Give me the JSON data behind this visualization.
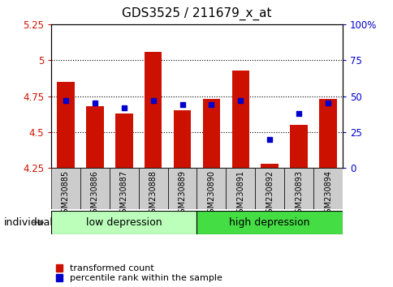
{
  "title": "GDS3525 / 211679_x_at",
  "samples": [
    "GSM230885",
    "GSM230886",
    "GSM230887",
    "GSM230888",
    "GSM230889",
    "GSM230890",
    "GSM230891",
    "GSM230892",
    "GSM230893",
    "GSM230894"
  ],
  "bar_values": [
    4.85,
    4.68,
    4.63,
    5.06,
    4.65,
    4.73,
    4.93,
    4.28,
    4.55,
    4.73
  ],
  "pct_values": [
    47,
    45,
    42,
    47,
    44,
    44,
    47,
    20,
    38,
    45
  ],
  "ymin": 4.25,
  "ymax": 5.25,
  "yticks": [
    4.25,
    4.5,
    4.75,
    5.0,
    5.25
  ],
  "ytick_labels": [
    "4.25",
    "4.5",
    "4.75",
    "5",
    "5.25"
  ],
  "y2min": 0,
  "y2max": 100,
  "y2ticks": [
    0,
    25,
    50,
    75,
    100
  ],
  "y2tick_labels": [
    "0",
    "25",
    "50",
    "75",
    "100%"
  ],
  "bar_color": "#cc1100",
  "dot_color": "#0000cc",
  "group1_label": "low depression",
  "group2_label": "high depression",
  "group1_color": "#bbffbb",
  "group2_color": "#44dd44",
  "legend_bar": "transformed count",
  "legend_dot": "percentile rank within the sample",
  "individual_label": "individual"
}
